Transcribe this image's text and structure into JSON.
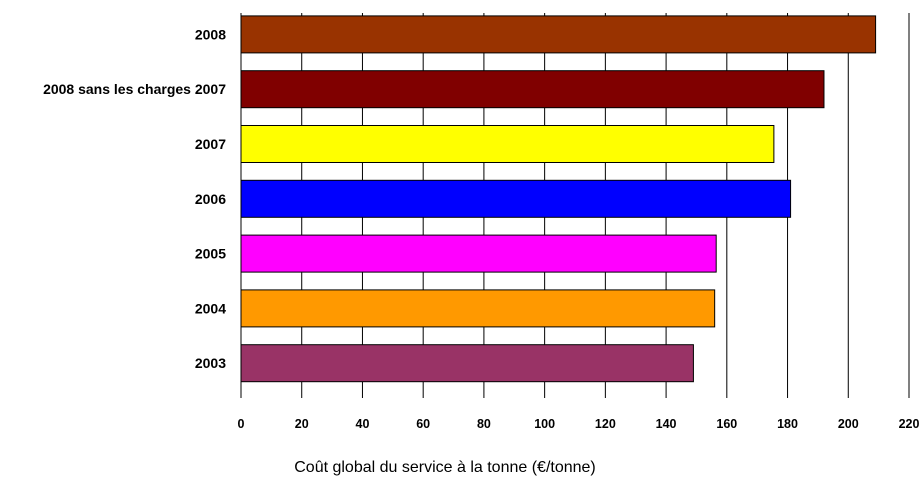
{
  "chart_data": {
    "type": "bar",
    "orientation": "horizontal",
    "title": "",
    "xlabel": "Coût global du service à la tonne (€/tonne)",
    "ylabel": "",
    "categories": [
      "2008",
      "2008 sans les charges 2007",
      "2007",
      "2006",
      "2005",
      "2004",
      "2003"
    ],
    "values": [
      209,
      192,
      175.5,
      181,
      156.5,
      156,
      149
    ],
    "colors": [
      "#993300",
      "#800000",
      "#ffff00",
      "#0000ff",
      "#ff00ff",
      "#ff9900",
      "#993366"
    ],
    "xlim": [
      0,
      220
    ],
    "xticks": [
      "0",
      "20",
      "40",
      "60",
      "80",
      "100",
      "120",
      "140",
      "160",
      "180",
      "200",
      "220"
    ],
    "grid": "vertical",
    "legend": "none"
  }
}
